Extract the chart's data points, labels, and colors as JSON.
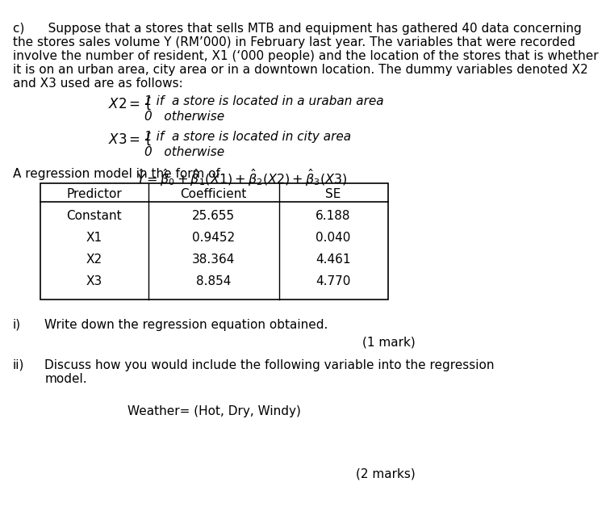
{
  "bg_color": "#ffffff",
  "text_color": "#000000",
  "font_size_body": 11,
  "paragraph_c_line1": "c)      Suppose that a stores that sells MTB and equipment has gathered 40 data concerning",
  "paragraph_c_line2": "the stores sales volume Y (RM’000) in February last year. The variables that were recorded",
  "paragraph_c_line3": "involve the number of resident, X1 (‘000 people) and the location of the stores that is whether",
  "paragraph_c_line4": "it is on an urban area, city area or in a downtown location. The dummy variables denoted X2",
  "paragraph_c_line5": "and X3 used are as follows:",
  "x2_line1": "1 if  a store is located in a uraban area",
  "x2_line2": "0   otherwise",
  "x3_line1": "1 if  a store is located in city area",
  "x3_line2": "0   otherwise",
  "regression_intro": "A regression model in the form of ",
  "table_headers": [
    "Predictor",
    "Coefficient",
    "SE"
  ],
  "table_rows": [
    [
      "Constant",
      "25.655",
      "6.188"
    ],
    [
      "X1",
      "0.9452",
      "0.040"
    ],
    [
      "X2",
      "38.364",
      "4.461"
    ],
    [
      "X3",
      "8.854",
      "4.770"
    ]
  ],
  "part_i_text": "Write down the regression equation obtained.",
  "part_i_marks": "(1 mark)",
  "part_ii_line1": "Discuss how you would include the following variable into the regression",
  "part_ii_line2": "model.",
  "part_ii_subtext": "Weather= (Hot, Dry, Windy)",
  "part_ii_marks": "(2 marks)"
}
